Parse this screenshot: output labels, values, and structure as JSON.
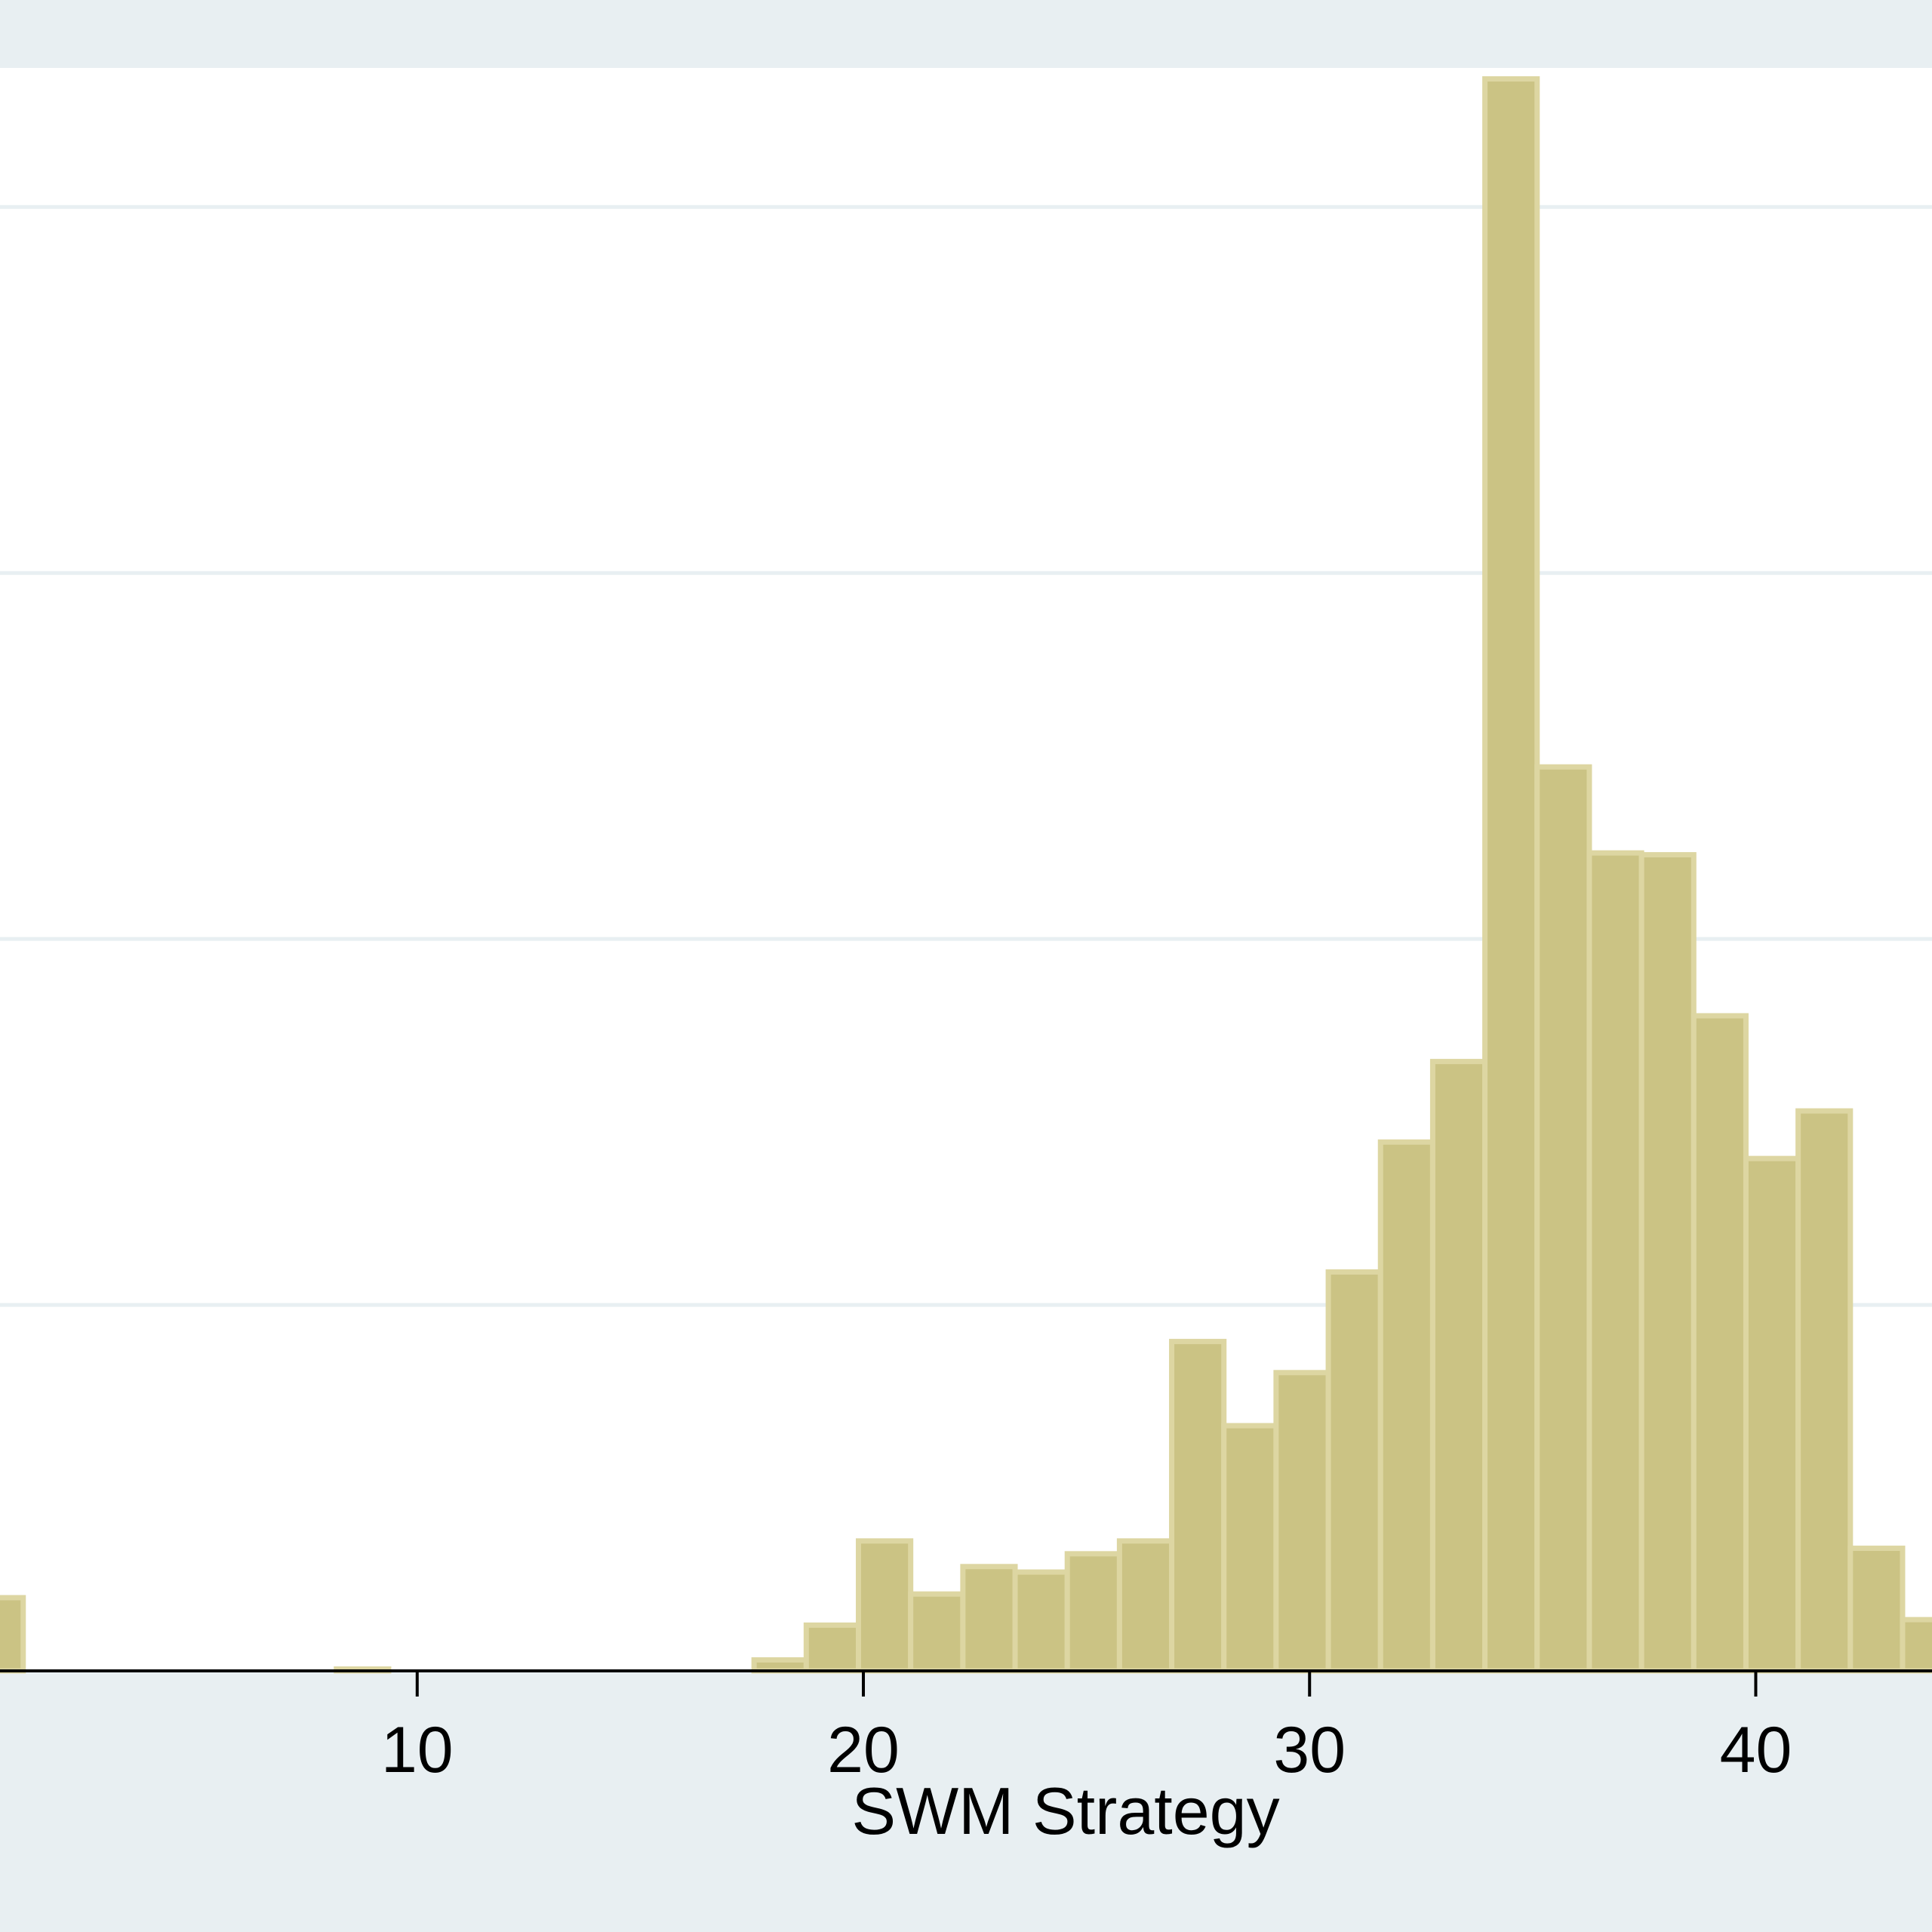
{
  "chart_data": {
    "type": "bar",
    "xlabel": "SWM Strategy",
    "ylabel": "",
    "title": "",
    "x_ticks": [
      10,
      20,
      30,
      40
    ],
    "xlim": [
      0.65,
      43.95
    ],
    "ylim": [
      0,
      0.0876
    ],
    "y_gridlines": [
      0.02,
      0.04,
      0.06,
      0.08
    ],
    "grid": true,
    "bin_width": 1.17,
    "bins": [
      {
        "start": 0.0,
        "value": 0.004
      },
      {
        "start": 8.19,
        "value": 0.0001
      },
      {
        "start": 17.55,
        "value": 0.0006
      },
      {
        "start": 18.72,
        "value": 0.0025
      },
      {
        "start": 19.89,
        "value": 0.0071
      },
      {
        "start": 21.06,
        "value": 0.0042
      },
      {
        "start": 22.23,
        "value": 0.0057
      },
      {
        "start": 23.4,
        "value": 0.0054
      },
      {
        "start": 24.57,
        "value": 0.0064
      },
      {
        "start": 25.74,
        "value": 0.0071
      },
      {
        "start": 26.91,
        "value": 0.018
      },
      {
        "start": 28.08,
        "value": 0.0134
      },
      {
        "start": 29.25,
        "value": 0.0163
      },
      {
        "start": 30.42,
        "value": 0.0218
      },
      {
        "start": 31.59,
        "value": 0.0289
      },
      {
        "start": 32.76,
        "value": 0.0333
      },
      {
        "start": 33.93,
        "value": 0.087
      },
      {
        "start": 35.1,
        "value": 0.0494
      },
      {
        "start": 36.27,
        "value": 0.0447
      },
      {
        "start": 37.44,
        "value": 0.0446
      },
      {
        "start": 38.61,
        "value": 0.0358
      },
      {
        "start": 39.78,
        "value": 0.028
      },
      {
        "start": 40.95,
        "value": 0.0306
      },
      {
        "start": 42.12,
        "value": 0.0067
      },
      {
        "start": 43.29,
        "value": 0.0028
      }
    ],
    "colors": {
      "bar_fill": "#cbc384",
      "bar_edge": "#ddd6a2",
      "plot_bg": "#ffffff",
      "outer_bg": "#e8eff2",
      "grid": "#e8eff2",
      "axis": "#000000"
    }
  }
}
